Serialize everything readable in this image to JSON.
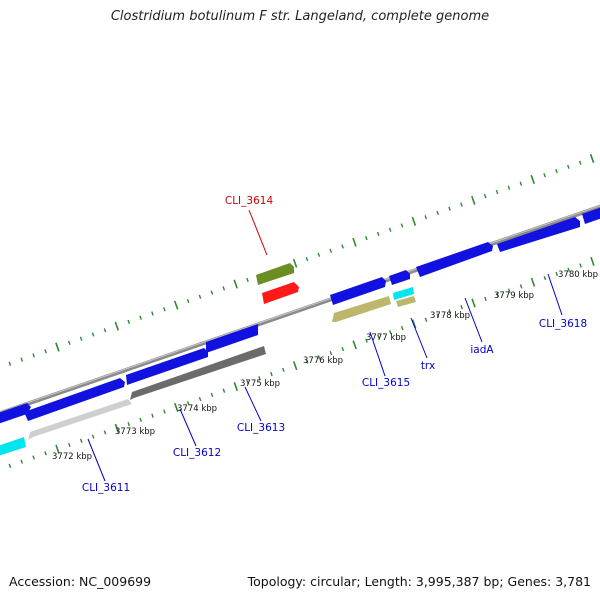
{
  "title": "Clostridium botulinum F str. Langeland, complete genome",
  "footer": {
    "accession": "Accession: NC_009699",
    "summary": "Topology: circular; Length: 3,995,387 bp; Genes: 3,781"
  },
  "colors": {
    "forward_gene": "#1212e0",
    "reverse_gene": "#6b6b6b",
    "highlight_gene": "#ff1a1a",
    "olive_gene": "#6b8e23",
    "khaki_gene": "#bdb76b",
    "cyan_gene": "#00e5ee",
    "light_gene": "#c8c8c8",
    "tick_color": "#2f8a2f",
    "label_blue": "#0000cc",
    "label_red": "#cc0000"
  },
  "kbp_ticks": [
    {
      "text": "3772 kbp"
    },
    {
      "text": "3773 kbp"
    },
    {
      "text": "3774 kbp"
    },
    {
      "text": "3775 kbp"
    },
    {
      "text": "3776 kbp"
    },
    {
      "text": "3777 kbp"
    },
    {
      "text": "3778 kbp"
    },
    {
      "text": "3779 kbp"
    },
    {
      "text": "3780 kbp"
    }
  ],
  "gene_labels": [
    {
      "text": "CLI_3611",
      "color": "#0000cc"
    },
    {
      "text": "CLI_3612",
      "color": "#0000cc"
    },
    {
      "text": "CLI_3613",
      "color": "#0000cc"
    },
    {
      "text": "CLI_3614",
      "color": "#cc0000"
    },
    {
      "text": "CLI_3615",
      "color": "#0000cc"
    },
    {
      "text": "trx",
      "color": "#0000cc"
    },
    {
      "text": "iadA",
      "color": "#0000cc"
    },
    {
      "text": "CLI_3618",
      "color": "#0000cc"
    }
  ]
}
